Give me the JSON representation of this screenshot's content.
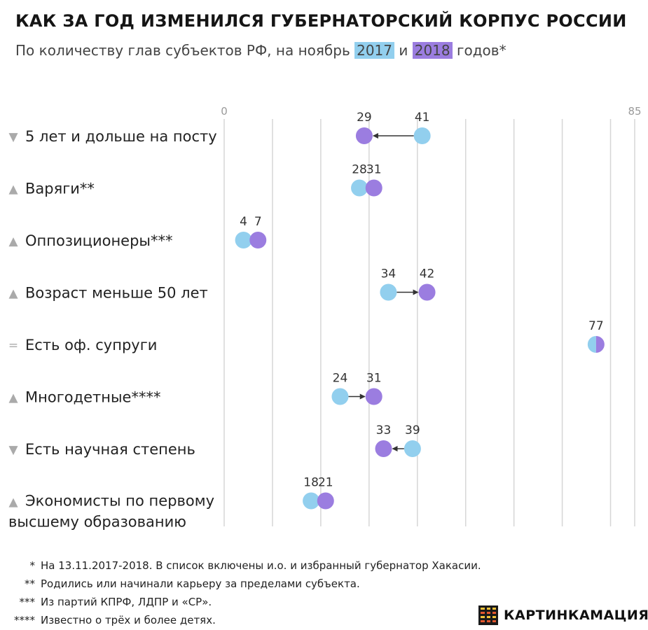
{
  "header": {
    "title": "КАК ЗА ГОД ИЗМЕНИЛСЯ ГУБЕРНАТОРСКИЙ КОРПУС РОССИИ",
    "subtitle_before": "По количеству глав субъектов РФ, на ноябрь",
    "subtitle_mid": "и",
    "subtitle_after": "годов*"
  },
  "chart_data": {
    "type": "dot",
    "xlim": [
      0,
      85
    ],
    "ticks": [
      0,
      10,
      20,
      30,
      40,
      50,
      60,
      70,
      80,
      85
    ],
    "tick_labels": [
      "0",
      "",
      "",
      "",
      "",
      "",
      "",
      "",
      "",
      "85"
    ],
    "grid": true,
    "series": [
      {
        "name": "2017",
        "color": "#92cfee"
      },
      {
        "name": "2018",
        "color": "#9b7de0"
      }
    ],
    "rows": [
      {
        "trend": "▼",
        "label": [
          "5 лет и дольше на посту"
        ],
        "v2017": 41,
        "v2018": 29
      },
      {
        "trend": "▲",
        "label": [
          "Варяги**"
        ],
        "v2017": 28,
        "v2018": 31
      },
      {
        "trend": "▲",
        "label": [
          "Оппозиционеры***"
        ],
        "v2017": 4,
        "v2018": 7
      },
      {
        "trend": "▲",
        "label": [
          "Возраст меньше 50 лет"
        ],
        "v2017": 34,
        "v2018": 42
      },
      {
        "trend": "=",
        "label": [
          "Есть оф. супруги"
        ],
        "v2017": 77,
        "v2018": 77
      },
      {
        "trend": "▲",
        "label": [
          "Многодетные****"
        ],
        "v2017": 24,
        "v2018": 31
      },
      {
        "trend": "▼",
        "label": [
          "Есть научная степень"
        ],
        "v2017": 39,
        "v2018": 33
      },
      {
        "trend": "▲",
        "label": [
          "Экономисты по первому",
          "высшему образованию"
        ],
        "v2017": 18,
        "v2018": 21
      }
    ]
  },
  "footnotes": [
    {
      "mark": "*",
      "text": "На 13.11.2017-2018. В список включены и.о. и избранный губернатор Хакасии."
    },
    {
      "mark": "**",
      "text": "Родились или начинали карьеру за пределами субъекта."
    },
    {
      "mark": "***",
      "text": "Из партий КПРФ, ЛДПР и «СР»."
    },
    {
      "mark": "****",
      "text": "Известно о трёх и более детях."
    }
  ],
  "logo": {
    "text": "КАРТИНКАМАЦИЯ"
  },
  "colors": {
    "c2017": "#92cfee",
    "c2018": "#9b7de0",
    "grid": "#d6d6d6",
    "arrow": "#333333"
  }
}
